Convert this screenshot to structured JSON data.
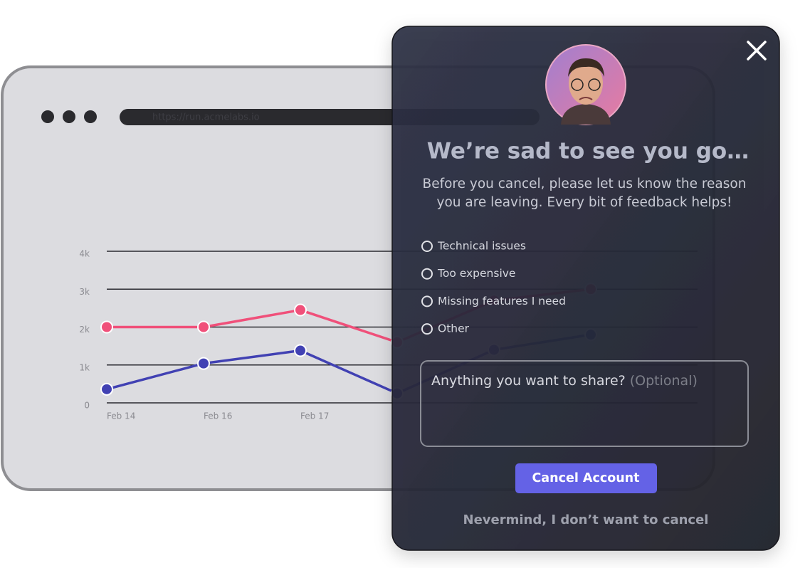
{
  "browser": {
    "url": "https://run.acmelabs.io",
    "chart": {
      "type": "line",
      "categories": [
        "Feb 14",
        "Feb 16",
        "Feb 17",
        null,
        null,
        null
      ],
      "series": [
        {
          "color": "#f0507a",
          "values": [
            2000,
            2000,
            2450,
            1600,
            2700,
            3000
          ]
        },
        {
          "color": "#4141b3",
          "values": [
            360,
            1040,
            1380,
            250,
            1400,
            1800
          ]
        }
      ],
      "ylim": [
        0,
        4000
      ],
      "yticks": [
        0,
        {
          "value": 1000,
          "label": "1k"
        },
        {
          "value": 2000,
          "label": "2k"
        },
        {
          "value": 3000,
          "label": "3k"
        },
        {
          "value": 4000,
          "label": "4k"
        }
      ],
      "grid": true
    }
  },
  "modal": {
    "title": "We’re sad to see you go…",
    "message": [
      "Before you cancel, please let us know the reason",
      "you are leaving. Every bit of feedback helps!"
    ],
    "options": [
      "Technical issues",
      "Too expensive",
      "Missing features I need",
      "Other"
    ],
    "textarea": {
      "placeholder": "Anything you want to share?",
      "hint": "(Optional)"
    },
    "primary_button": "Cancel Account",
    "secondary_link": "Nevermind, I don’t want to cancel"
  }
}
